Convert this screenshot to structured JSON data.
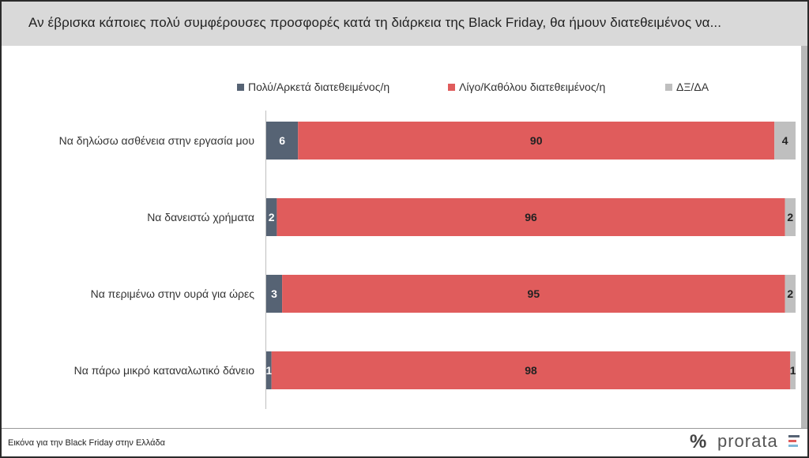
{
  "title": "Αν έβρισκα κάποιες πολύ συμφέρουσες προσφορές κατά τη διάρκεια της Black Friday, θα ήμουν διατεθειμένος να...",
  "footer": {
    "caption": "Εικόνα για την Black Friday στην Ελλάδα",
    "brand": "prorata",
    "brand_symbol": "%"
  },
  "colors": {
    "series1": "#566374",
    "series2": "#e05c5c",
    "series3": "#bfbfbf",
    "header_bg": "#d9d9d9"
  },
  "chart_data": {
    "type": "bar",
    "orientation": "horizontal-stacked-100",
    "title": "Αν έβρισκα κάποιες πολύ συμφέρουσες προσφορές κατά τη διάρκεια της Black Friday, θα ήμουν διατεθειμένος να...",
    "categories": [
      "Να δηλώσω ασθένεια στην εργασία μου",
      "Να δανειστώ χρήματα",
      "Να περιμένω στην ουρά για ώρες",
      "Να πάρω μικρό καταναλωτικό δάνειο"
    ],
    "series": [
      {
        "name": "Πολύ/Αρκετά διατεθειμένος/η",
        "values": [
          6,
          2,
          3,
          1
        ],
        "color": "#566374"
      },
      {
        "name": "Λίγο/Καθόλου διατεθειμένος/η",
        "values": [
          90,
          96,
          95,
          98
        ],
        "color": "#e05c5c"
      },
      {
        "name": "ΔΞ/ΔΑ",
        "values": [
          4,
          2,
          2,
          1
        ],
        "color": "#bfbfbf"
      }
    ],
    "xlim": [
      0,
      100
    ],
    "legend": "top",
    "grid": false
  }
}
